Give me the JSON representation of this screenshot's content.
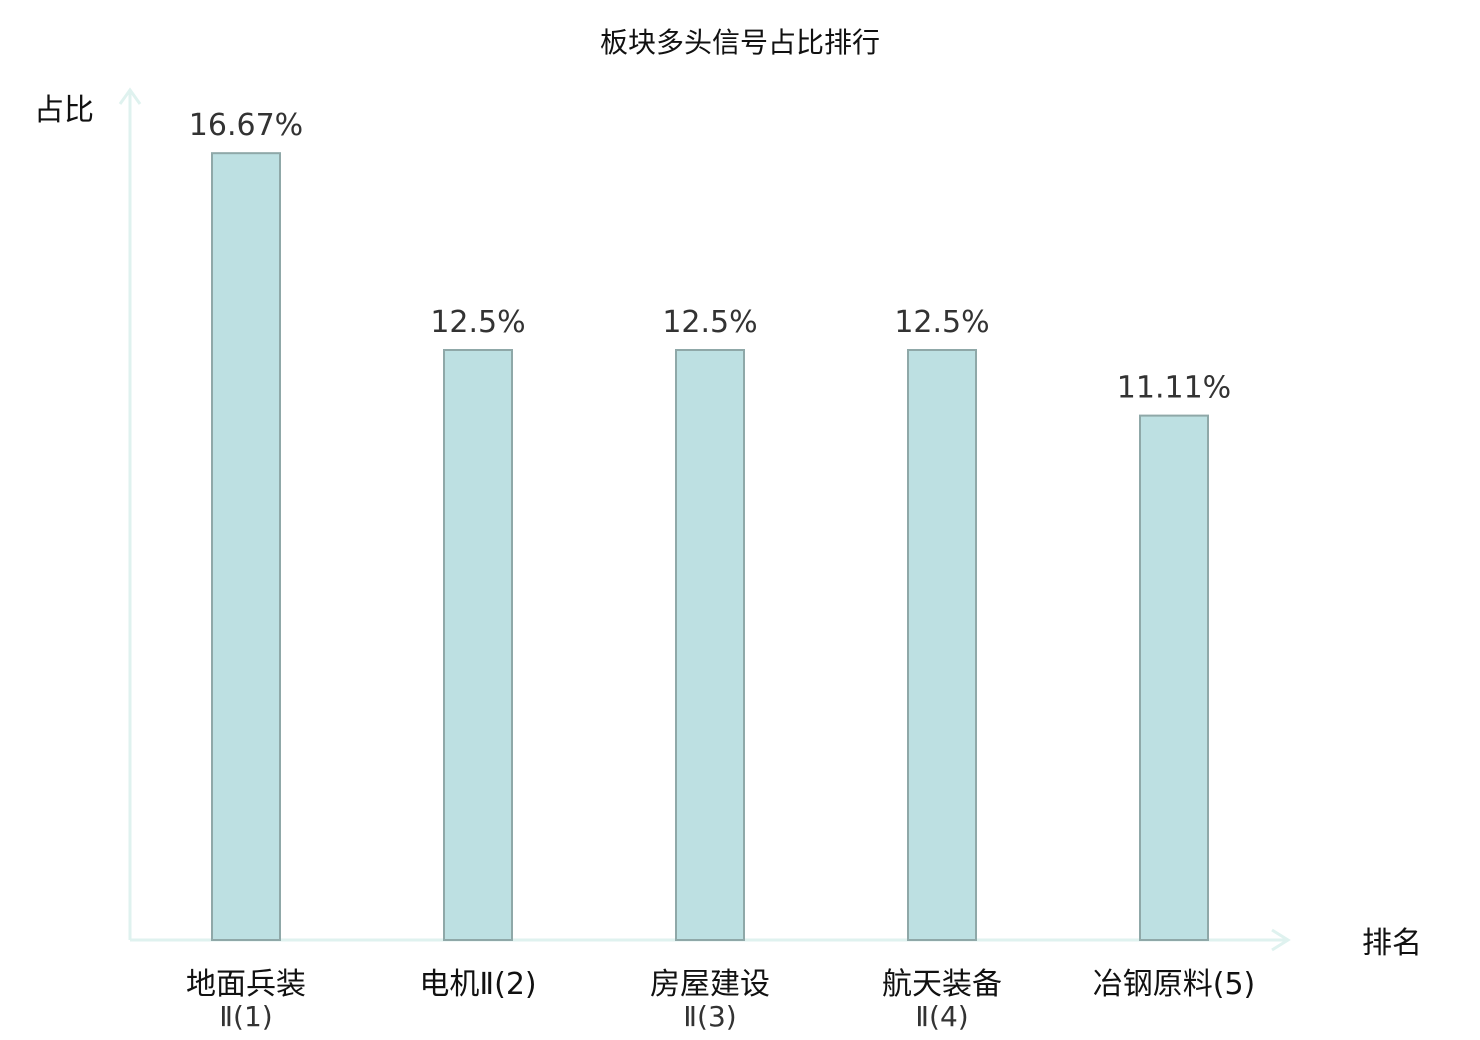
{
  "chart_data": {
    "type": "bar",
    "title": "板块多头信号占比排行",
    "xlabel": "排名",
    "ylabel": "占比",
    "ylim": [
      0,
      20
    ],
    "grid": false,
    "categories": [
      {
        "line1": "地面兵装",
        "line2": "Ⅱ(1)",
        "highlight": false
      },
      {
        "line1": "电机Ⅱ(2)",
        "line2": "",
        "highlight": true
      },
      {
        "line1": "房屋建设",
        "line2": "Ⅱ(3)",
        "highlight": false
      },
      {
        "line1": "航天装备",
        "line2": "Ⅱ(4)",
        "highlight": false
      },
      {
        "line1": "冶钢原料(5)",
        "line2": "",
        "highlight": false
      }
    ],
    "values": [
      16.67,
      12.5,
      12.5,
      12.5,
      11.11
    ],
    "value_labels": [
      "16.67%",
      "12.5%",
      "12.5%",
      "12.5%",
      "11.11%"
    ],
    "colors": {
      "bar_fill": "#bde0e2",
      "bar_stroke": "#8fa8a8",
      "axis": "#dff2ef",
      "highlight_text": "#e8251f"
    }
  }
}
